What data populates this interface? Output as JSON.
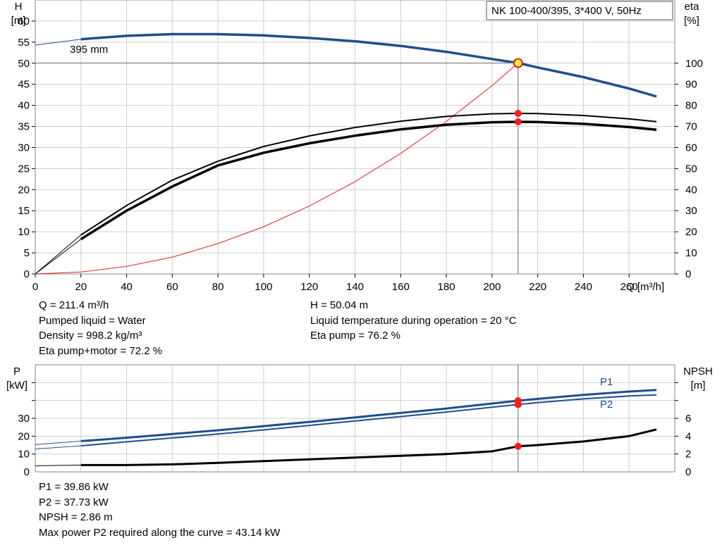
{
  "chart_data": [
    {
      "type": "line",
      "title": "NK 100-400/395, 3*400 V, 50Hz",
      "xlabel": "Q [m³/h]",
      "ylabel_left": [
        "H",
        "[m]"
      ],
      "ylabel_right": [
        "eta",
        "[%]"
      ],
      "xlim": [
        0,
        280
      ],
      "ylim_left": [
        0,
        65
      ],
      "ylim_right_labels": [
        0,
        10,
        20,
        30,
        40,
        50,
        60,
        70,
        80,
        90,
        100
      ],
      "x_ticks": [
        0,
        20,
        40,
        60,
        80,
        100,
        120,
        140,
        160,
        180,
        200,
        220,
        240,
        260
      ],
      "y_ticks_left": [
        0,
        5,
        10,
        15,
        20,
        25,
        30,
        35,
        40,
        45,
        50,
        55,
        60
      ],
      "grid": true,
      "curve_label": "395 mm",
      "series": [
        {
          "key": "head",
          "color": "#1f4e8c",
          "x": [
            0,
            20,
            40,
            60,
            80,
            100,
            120,
            140,
            160,
            180,
            200,
            211.4,
            220,
            240,
            260,
            272
          ],
          "y": [
            54.3,
            55.7,
            56.5,
            56.9,
            56.9,
            56.6,
            56.0,
            55.2,
            54.1,
            52.7,
            51.0,
            50.04,
            49.0,
            46.7,
            44.0,
            42.1
          ]
        },
        {
          "key": "eta-pump",
          "color": "#000000",
          "x": [
            20,
            40,
            60,
            80,
            100,
            120,
            140,
            160,
            180,
            200,
            211.4,
            220,
            240,
            260,
            272
          ],
          "y": [
            18.5,
            32.5,
            44.5,
            53.5,
            60.5,
            65.5,
            69.5,
            72.5,
            74.8,
            76.0,
            76.2,
            76.1,
            75.2,
            73.6,
            72.3
          ]
        },
        {
          "key": "eta-pump-motor",
          "color": "#000000",
          "x": [
            20,
            40,
            60,
            80,
            100,
            120,
            140,
            160,
            180,
            200,
            211.4,
            220,
            240,
            260,
            272
          ],
          "y": [
            16.5,
            30.0,
            41.5,
            51.5,
            57.5,
            62.0,
            65.6,
            68.6,
            70.8,
            72.0,
            72.2,
            72.1,
            71.2,
            69.7,
            68.4
          ]
        },
        {
          "key": "system",
          "color": "#e02020",
          "x": [
            0,
            20,
            40,
            60,
            80,
            100,
            120,
            140,
            160,
            180,
            200,
            211.4
          ],
          "y": [
            0,
            0.45,
            1.8,
            4.0,
            7.2,
            11.2,
            16.1,
            21.9,
            28.6,
            36.2,
            44.7,
            50.04
          ]
        }
      ],
      "duty_point": {
        "q": 211.4,
        "h": 50.04
      },
      "readouts": {
        "left": [
          "Q = 211.4 m³/h",
          "Pumped liquid = Water",
          "Density = 998.2 kg/m³",
          "Eta pump+motor = 72.2 %"
        ],
        "right": [
          "H = 50.04 m",
          "Liquid temperature during operation = 20 °C",
          "Eta pump = 76.2 %"
        ]
      }
    },
    {
      "type": "line",
      "xlim": [
        0,
        280
      ],
      "ylabel_left": [
        "P",
        "[kW]"
      ],
      "ylabel_right": [
        "NPSH",
        "[m]"
      ],
      "ylim_left": [
        0,
        60
      ],
      "y_ticks_left": [
        0,
        10,
        20,
        30
      ],
      "ylim_right": [
        0,
        12
      ],
      "y_ticks_right": [
        0,
        2,
        4,
        6
      ],
      "grid": true,
      "series": [
        {
          "key": "P1",
          "name": "P1",
          "color": "#1f4e8c",
          "axis": "left",
          "x": [
            0,
            20,
            40,
            60,
            80,
            100,
            120,
            140,
            160,
            180,
            200,
            211.4,
            220,
            240,
            260,
            272
          ],
          "y": [
            15.3,
            17.2,
            19.1,
            21.2,
            23.3,
            25.6,
            28.0,
            30.5,
            33.0,
            35.5,
            38.3,
            39.86,
            40.9,
            43.1,
            45.0,
            45.9
          ]
        },
        {
          "key": "P2",
          "name": "P2",
          "color": "#1f4e8c",
          "axis": "left",
          "x": [
            0,
            20,
            40,
            60,
            80,
            100,
            120,
            140,
            160,
            180,
            200,
            211.4,
            220,
            240,
            260,
            272
          ],
          "y": [
            12.8,
            14.6,
            16.8,
            19.0,
            21.2,
            23.5,
            26.0,
            28.5,
            31.0,
            33.5,
            36.2,
            37.73,
            38.8,
            40.9,
            42.5,
            43.14
          ]
        },
        {
          "key": "NPSH",
          "color": "#000000",
          "axis": "right",
          "x": [
            0,
            20,
            40,
            60,
            80,
            100,
            120,
            140,
            160,
            180,
            200,
            211.4,
            220,
            240,
            260,
            272
          ],
          "y": [
            0.68,
            0.76,
            0.76,
            0.84,
            1.0,
            1.2,
            1.4,
            1.6,
            1.8,
            2.0,
            2.3,
            2.86,
            3.0,
            3.4,
            4.0,
            4.75
          ]
        }
      ],
      "readouts": [
        "P1 = 39.86 kW",
        "P2 = 37.73 kW",
        "NPSH = 2.86 m",
        "Max power P2 required along the curve = 43.14 kW"
      ]
    }
  ]
}
